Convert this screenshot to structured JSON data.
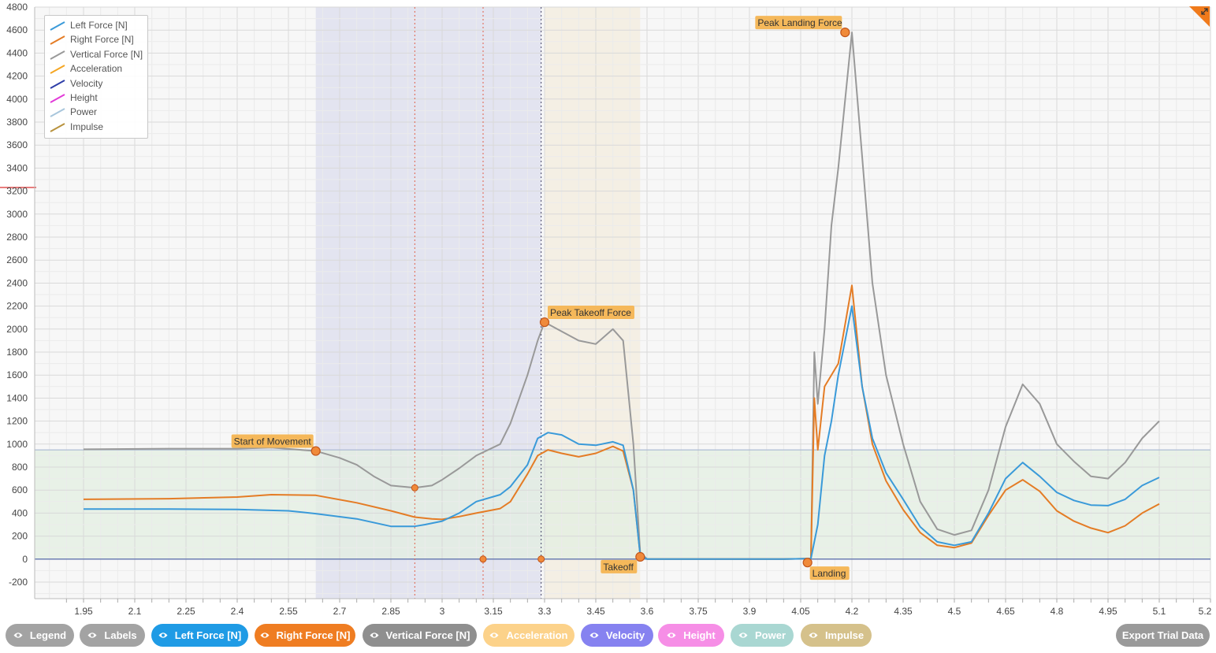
{
  "chart_data": {
    "type": "line",
    "xlim": [
      1.9,
      5.25
    ],
    "ylim": [
      -300,
      4800
    ],
    "x_ticks": [
      "1.95",
      "2.1",
      "2.25",
      "2.4",
      "2.55",
      "2.7",
      "2.85",
      "3",
      "3.15",
      "3.3",
      "3.45",
      "3.6",
      "3.75",
      "3.9",
      "4.05",
      "4.2",
      "4.35",
      "4.5",
      "4.65",
      "4.8",
      "4.95",
      "5.1",
      "5.2"
    ],
    "y_ticks": [
      "4800",
      "4600",
      "4400",
      "4200",
      "4000",
      "3800",
      "3600",
      "3400",
      "3200",
      "3000",
      "2800",
      "2600",
      "2400",
      "2200",
      "2000",
      "1800",
      "1600",
      "1400",
      "1200",
      "1000",
      "800",
      "600",
      "400",
      "200",
      "0",
      "-200"
    ],
    "series": [
      {
        "name": "Left Force [N]",
        "color": "#3a9ad9",
        "points": [
          [
            1.95,
            435
          ],
          [
            2.2,
            435
          ],
          [
            2.4,
            432
          ],
          [
            2.55,
            420
          ],
          [
            2.63,
            395
          ],
          [
            2.75,
            350
          ],
          [
            2.85,
            285
          ],
          [
            2.92,
            285
          ],
          [
            2.95,
            300
          ],
          [
            3.0,
            330
          ],
          [
            3.05,
            400
          ],
          [
            3.1,
            500
          ],
          [
            3.17,
            560
          ],
          [
            3.2,
            630
          ],
          [
            3.25,
            820
          ],
          [
            3.28,
            1050
          ],
          [
            3.31,
            1100
          ],
          [
            3.35,
            1080
          ],
          [
            3.4,
            1000
          ],
          [
            3.45,
            990
          ],
          [
            3.5,
            1020
          ],
          [
            3.53,
            990
          ],
          [
            3.56,
            600
          ],
          [
            3.58,
            40
          ],
          [
            3.6,
            0
          ],
          [
            4.0,
            0
          ],
          [
            4.08,
            5
          ],
          [
            4.1,
            300
          ],
          [
            4.12,
            900
          ],
          [
            4.14,
            1200
          ],
          [
            4.16,
            1600
          ],
          [
            4.2,
            2200
          ],
          [
            4.23,
            1500
          ],
          [
            4.26,
            1050
          ],
          [
            4.3,
            750
          ],
          [
            4.35,
            520
          ],
          [
            4.4,
            280
          ],
          [
            4.45,
            150
          ],
          [
            4.5,
            120
          ],
          [
            4.55,
            150
          ],
          [
            4.6,
            400
          ],
          [
            4.65,
            700
          ],
          [
            4.7,
            840
          ],
          [
            4.75,
            720
          ],
          [
            4.8,
            580
          ],
          [
            4.85,
            510
          ],
          [
            4.9,
            470
          ],
          [
            4.95,
            465
          ],
          [
            5.0,
            520
          ],
          [
            5.05,
            640
          ],
          [
            5.1,
            710
          ]
        ]
      },
      {
        "name": "Right Force [N]",
        "color": "#e47c25",
        "points": [
          [
            1.95,
            520
          ],
          [
            2.2,
            525
          ],
          [
            2.4,
            540
          ],
          [
            2.5,
            560
          ],
          [
            2.63,
            555
          ],
          [
            2.75,
            490
          ],
          [
            2.85,
            420
          ],
          [
            2.92,
            365
          ],
          [
            2.97,
            350
          ],
          [
            3.0,
            345
          ],
          [
            3.05,
            370
          ],
          [
            3.1,
            400
          ],
          [
            3.17,
            440
          ],
          [
            3.2,
            500
          ],
          [
            3.25,
            740
          ],
          [
            3.28,
            900
          ],
          [
            3.31,
            950
          ],
          [
            3.35,
            920
          ],
          [
            3.4,
            890
          ],
          [
            3.45,
            920
          ],
          [
            3.5,
            980
          ],
          [
            3.53,
            940
          ],
          [
            3.56,
            600
          ],
          [
            3.58,
            40
          ],
          [
            3.6,
            0
          ],
          [
            4.0,
            0
          ],
          [
            4.08,
            5
          ],
          [
            4.09,
            1400
          ],
          [
            4.1,
            950
          ],
          [
            4.12,
            1500
          ],
          [
            4.16,
            1700
          ],
          [
            4.2,
            2380
          ],
          [
            4.23,
            1500
          ],
          [
            4.26,
            1000
          ],
          [
            4.3,
            680
          ],
          [
            4.35,
            430
          ],
          [
            4.4,
            230
          ],
          [
            4.45,
            120
          ],
          [
            4.5,
            100
          ],
          [
            4.55,
            140
          ],
          [
            4.6,
            380
          ],
          [
            4.65,
            600
          ],
          [
            4.7,
            690
          ],
          [
            4.75,
            590
          ],
          [
            4.8,
            420
          ],
          [
            4.85,
            330
          ],
          [
            4.9,
            270
          ],
          [
            4.95,
            230
          ],
          [
            5.0,
            290
          ],
          [
            5.05,
            400
          ],
          [
            5.1,
            480
          ]
        ]
      },
      {
        "name": "Vertical Force [N]",
        "color": "#999999",
        "points": [
          [
            1.95,
            955
          ],
          [
            2.2,
            960
          ],
          [
            2.4,
            960
          ],
          [
            2.5,
            970
          ],
          [
            2.63,
            940
          ],
          [
            2.7,
            880
          ],
          [
            2.75,
            820
          ],
          [
            2.8,
            720
          ],
          [
            2.85,
            640
          ],
          [
            2.92,
            620
          ],
          [
            2.97,
            640
          ],
          [
            3.0,
            690
          ],
          [
            3.05,
            790
          ],
          [
            3.1,
            900
          ],
          [
            3.17,
            1000
          ],
          [
            3.2,
            1180
          ],
          [
            3.25,
            1600
          ],
          [
            3.28,
            1900
          ],
          [
            3.3,
            2060
          ],
          [
            3.35,
            1980
          ],
          [
            3.4,
            1900
          ],
          [
            3.45,
            1870
          ],
          [
            3.5,
            2000
          ],
          [
            3.53,
            1900
          ],
          [
            3.56,
            1000
          ],
          [
            3.58,
            60
          ],
          [
            3.6,
            0
          ],
          [
            4.0,
            0
          ],
          [
            4.08,
            5
          ],
          [
            4.09,
            1800
          ],
          [
            4.1,
            1350
          ],
          [
            4.12,
            2000
          ],
          [
            4.14,
            2900
          ],
          [
            4.16,
            3400
          ],
          [
            4.2,
            4580
          ],
          [
            4.23,
            3500
          ],
          [
            4.26,
            2400
          ],
          [
            4.3,
            1600
          ],
          [
            4.35,
            1000
          ],
          [
            4.4,
            500
          ],
          [
            4.45,
            260
          ],
          [
            4.5,
            210
          ],
          [
            4.55,
            250
          ],
          [
            4.6,
            600
          ],
          [
            4.65,
            1150
          ],
          [
            4.7,
            1520
          ],
          [
            4.75,
            1350
          ],
          [
            4.8,
            1000
          ],
          [
            4.85,
            850
          ],
          [
            4.9,
            720
          ],
          [
            4.95,
            700
          ],
          [
            5.0,
            840
          ],
          [
            5.05,
            1050
          ],
          [
            5.1,
            1200
          ]
        ]
      }
    ],
    "legend": [
      "Left Force [N]",
      "Right Force [N]",
      "Vertical Force [N]",
      "Acceleration",
      "Velocity",
      "Height",
      "Power",
      "Impulse"
    ],
    "legend_colors": [
      "#3a9ad9",
      "#e47c25",
      "#999999",
      "#f5a623",
      "#2e3ea8",
      "#e23ad8",
      "#a8c6dc",
      "#b8923d"
    ],
    "legend_position": "top-left",
    "annotations": [
      {
        "label": "Start of Movement",
        "x": 2.63,
        "y": 940
      },
      {
        "label": "Peak Takeoff Force",
        "x": 3.3,
        "y": 2060
      },
      {
        "label": "Takeoff",
        "x": 3.58,
        "y": 20
      },
      {
        "label": "Landing",
        "x": 4.07,
        "y": -30
      },
      {
        "label": "Peak Landing Force",
        "x": 4.18,
        "y": 4580
      }
    ],
    "marker_points": [
      {
        "x": 2.92,
        "y": 620
      },
      {
        "x": 3.12,
        "y": 0
      },
      {
        "x": 3.29,
        "y": 0
      }
    ],
    "shaded_regions": [
      {
        "x_start": 2.63,
        "x_end": 3.29,
        "color": "#dfe1ee"
      },
      {
        "x_start": 3.3,
        "x_end": 3.58,
        "color": "#f3ede0"
      },
      {
        "y_start": 0,
        "y_end": 950,
        "color": "#e3efe2"
      }
    ],
    "vertical_lines": [
      {
        "x": 2.92,
        "style": "red-dotted"
      },
      {
        "x": 3.12,
        "style": "red-dotted"
      },
      {
        "x": 3.29,
        "style": "dark-dotted"
      }
    ],
    "grid": true
  },
  "toolbar": {
    "buttons": [
      {
        "label": "Legend",
        "color": "#a3a3a3"
      },
      {
        "label": "Labels",
        "color": "#a3a3a3"
      },
      {
        "label": "Left Force [N]",
        "color": "#1f9be5"
      },
      {
        "label": "Right Force [N]",
        "color": "#ef7d22"
      },
      {
        "label": "Vertical Force [N]",
        "color": "#8f8f8f"
      },
      {
        "label": "Acceleration",
        "color": "#fcd28a"
      },
      {
        "label": "Velocity",
        "color": "#8682f0"
      },
      {
        "label": "Height",
        "color": "#f68ee6"
      },
      {
        "label": "Power",
        "color": "#a9d7d2"
      },
      {
        "label": "Impulse",
        "color": "#d5c18b"
      }
    ],
    "export_label": "Export Trial Data",
    "export_color": "#9a9a9a"
  },
  "icons": {
    "eye": "eye-icon",
    "expand": "expand-icon"
  }
}
